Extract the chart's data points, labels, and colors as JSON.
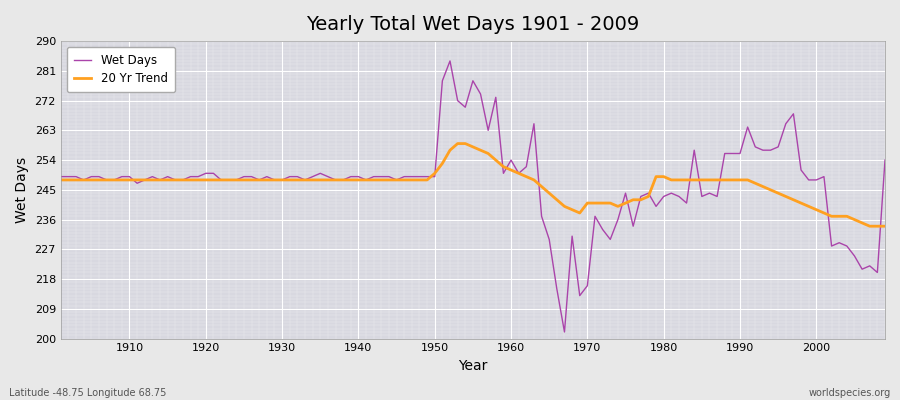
{
  "title": "Yearly Total Wet Days 1901 - 2009",
  "xlabel": "Year",
  "ylabel": "Wet Days",
  "bottom_left_text": "Latitude -48.75 Longitude 68.75",
  "bottom_right_text": "worldspecies.org",
  "ylim": [
    200,
    290
  ],
  "yticks": [
    200,
    209,
    218,
    227,
    236,
    245,
    254,
    263,
    272,
    281,
    290
  ],
  "xlim": [
    1901,
    2009
  ],
  "wet_days_color": "#aa44aa",
  "trend_color": "#FFA020",
  "bg_color": "#e8e8e8",
  "plot_bg_color": "#d8d8e0",
  "grid_color": "#ffffff",
  "years": [
    1901,
    1902,
    1903,
    1904,
    1905,
    1906,
    1907,
    1908,
    1909,
    1910,
    1911,
    1912,
    1913,
    1914,
    1915,
    1916,
    1917,
    1918,
    1919,
    1920,
    1921,
    1922,
    1923,
    1924,
    1925,
    1926,
    1927,
    1928,
    1929,
    1930,
    1931,
    1932,
    1933,
    1934,
    1935,
    1936,
    1937,
    1938,
    1939,
    1940,
    1941,
    1942,
    1943,
    1944,
    1945,
    1946,
    1947,
    1948,
    1949,
    1950,
    1951,
    1952,
    1953,
    1954,
    1955,
    1956,
    1957,
    1958,
    1959,
    1960,
    1961,
    1962,
    1963,
    1964,
    1965,
    1966,
    1967,
    1968,
    1969,
    1970,
    1971,
    1972,
    1973,
    1974,
    1975,
    1976,
    1977,
    1978,
    1979,
    1980,
    1981,
    1982,
    1983,
    1984,
    1985,
    1986,
    1987,
    1988,
    1989,
    1990,
    1991,
    1992,
    1993,
    1994,
    1995,
    1996,
    1997,
    1998,
    1999,
    2000,
    2001,
    2002,
    2003,
    2004,
    2005,
    2006,
    2007,
    2008,
    2009
  ],
  "wet_days": [
    249,
    249,
    249,
    248,
    249,
    249,
    248,
    248,
    249,
    249,
    247,
    248,
    249,
    248,
    249,
    248,
    248,
    249,
    249,
    250,
    250,
    248,
    248,
    248,
    249,
    249,
    248,
    249,
    248,
    248,
    249,
    249,
    248,
    249,
    250,
    249,
    248,
    248,
    249,
    249,
    248,
    249,
    249,
    249,
    248,
    249,
    249,
    249,
    249,
    249,
    278,
    284,
    272,
    270,
    278,
    274,
    263,
    273,
    250,
    254,
    250,
    252,
    265,
    237,
    230,
    215,
    202,
    231,
    213,
    216,
    237,
    233,
    230,
    236,
    244,
    234,
    243,
    244,
    240,
    243,
    244,
    243,
    241,
    257,
    243,
    244,
    243,
    256,
    256,
    256,
    264,
    258,
    257,
    257,
    258,
    265,
    268,
    251,
    248,
    248,
    249,
    228,
    229,
    228,
    225,
    221,
    222,
    220,
    254
  ],
  "trend": [
    248,
    248,
    248,
    248,
    248,
    248,
    248,
    248,
    248,
    248,
    248,
    248,
    248,
    248,
    248,
    248,
    248,
    248,
    248,
    248,
    248,
    248,
    248,
    248,
    248,
    248,
    248,
    248,
    248,
    248,
    248,
    248,
    248,
    248,
    248,
    248,
    248,
    248,
    248,
    248,
    248,
    248,
    248,
    248,
    248,
    248,
    248,
    248,
    248,
    250,
    253,
    257,
    259,
    259,
    258,
    257,
    256,
    254,
    252,
    251,
    250,
    249,
    248,
    246,
    244,
    242,
    240,
    239,
    238,
    241,
    241,
    241,
    241,
    240,
    241,
    242,
    242,
    243,
    249,
    249,
    248,
    248,
    248,
    248,
    248,
    248,
    248,
    248,
    248,
    248,
    248,
    247,
    246,
    245,
    244,
    243,
    242,
    241,
    240,
    239,
    238,
    237,
    237,
    237,
    236,
    235,
    234,
    234,
    234
  ]
}
